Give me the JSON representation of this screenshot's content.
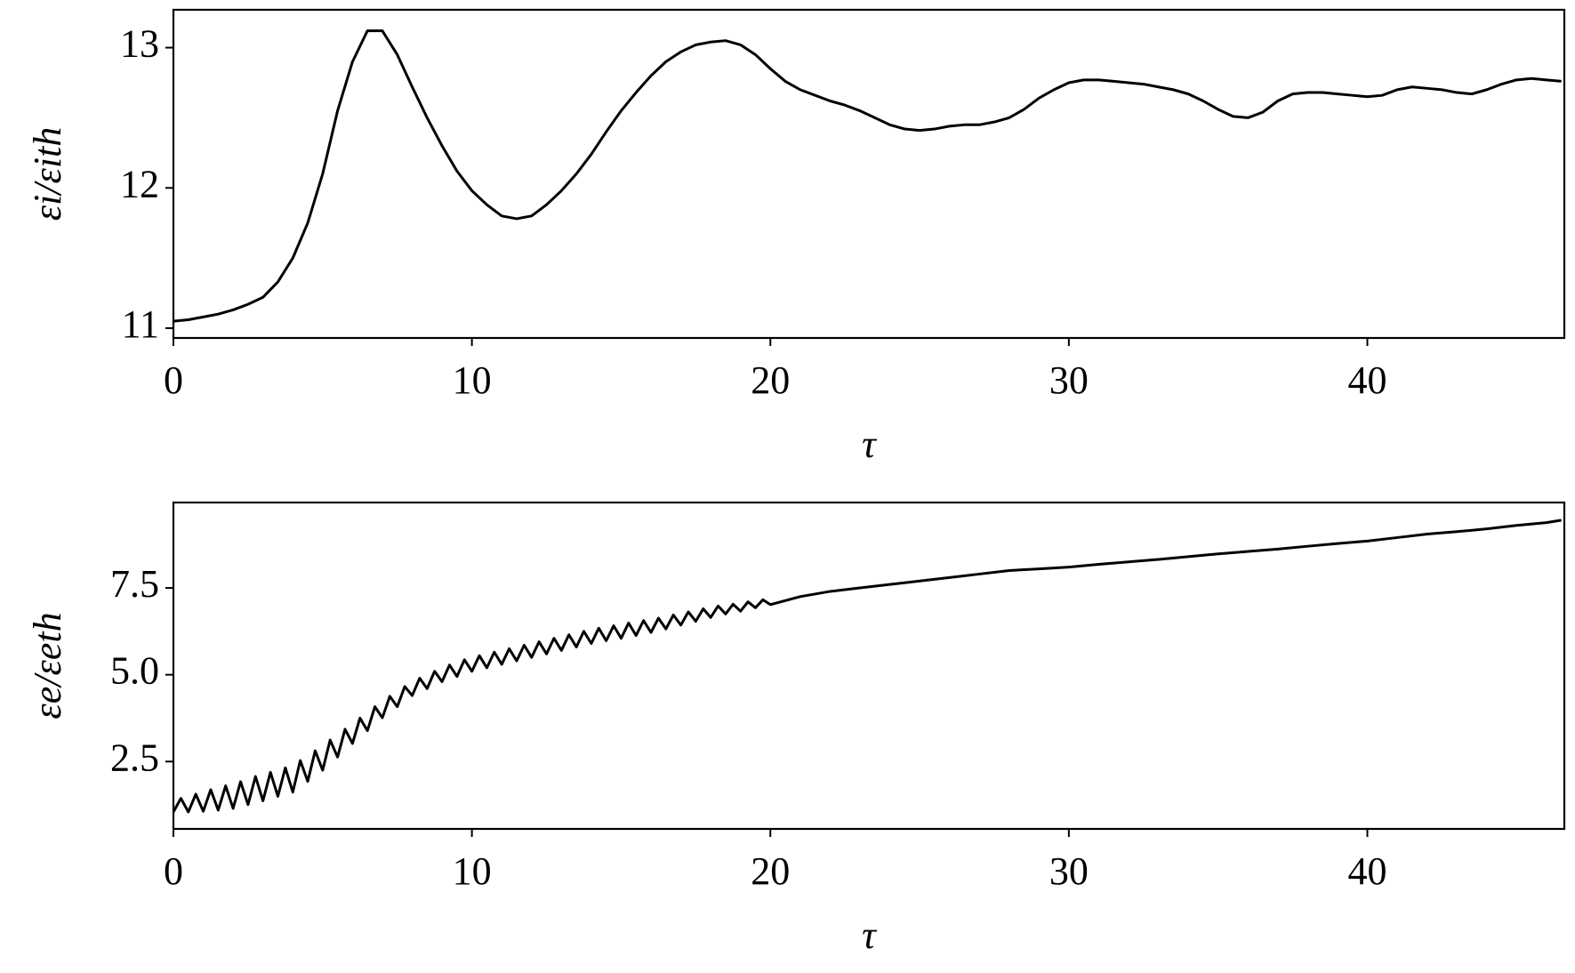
{
  "chart_data": [
    {
      "type": "line",
      "xlabel": "τ",
      "ylabel": "εi/εith",
      "x": [
        0,
        0.5,
        1,
        1.5,
        2,
        2.5,
        3,
        3.5,
        4,
        4.5,
        5,
        5.5,
        6,
        6.5,
        7,
        7.5,
        8,
        8.5,
        9,
        9.5,
        10,
        10.5,
        11,
        11.5,
        12,
        12.5,
        13,
        13.5,
        14,
        14.5,
        15,
        15.5,
        16,
        16.5,
        17,
        17.5,
        18,
        18.5,
        19,
        19.5,
        20,
        20.5,
        21,
        21.5,
        22,
        22.5,
        23,
        23.5,
        24,
        24.5,
        25,
        25.5,
        26,
        26.5,
        27,
        27.5,
        28,
        28.5,
        29,
        29.5,
        30,
        30.5,
        31,
        31.5,
        32,
        32.5,
        33,
        33.5,
        34,
        34.5,
        35,
        35.5,
        36,
        36.5,
        37,
        37.5,
        38,
        38.5,
        39,
        39.5,
        40,
        40.5,
        41,
        41.5,
        42,
        42.5,
        43,
        43.5,
        44,
        44.5,
        45,
        45.5,
        46,
        46.5
      ],
      "series": [
        {
          "color": "#000000",
          "values": [
            11.05,
            11.06,
            11.08,
            11.1,
            11.13,
            11.17,
            11.22,
            11.33,
            11.5,
            11.75,
            12.1,
            12.55,
            12.9,
            13.12,
            13.12,
            12.95,
            12.72,
            12.5,
            12.3,
            12.12,
            11.98,
            11.88,
            11.8,
            11.78,
            11.8,
            11.88,
            11.98,
            12.1,
            12.24,
            12.4,
            12.55,
            12.68,
            12.8,
            12.9,
            12.97,
            13.02,
            13.04,
            13.05,
            13.02,
            12.95,
            12.85,
            12.76,
            12.7,
            12.66,
            12.62,
            12.59,
            12.55,
            12.5,
            12.45,
            12.42,
            12.41,
            12.42,
            12.44,
            12.45,
            12.45,
            12.47,
            12.5,
            12.56,
            12.64,
            12.7,
            12.75,
            12.77,
            12.77,
            12.76,
            12.75,
            12.74,
            12.72,
            12.7,
            12.67,
            12.62,
            12.56,
            12.51,
            12.5,
            12.54,
            12.62,
            12.67,
            12.68,
            12.68,
            12.67,
            12.66,
            12.65,
            12.66,
            12.7,
            12.72,
            12.71,
            12.7,
            12.68,
            12.67,
            12.7,
            12.74,
            12.77,
            12.78,
            12.77,
            12.76
          ]
        }
      ],
      "xlim": [
        0,
        46.6
      ],
      "xticks": [
        0,
        10,
        20,
        30,
        40
      ],
      "ylim": [
        10.93,
        13.27
      ],
      "yticks": [
        11,
        12,
        13
      ]
    },
    {
      "type": "line",
      "xlabel": "τ",
      "ylabel": "εe/εeth",
      "x": [
        0,
        0.25,
        0.5,
        0.75,
        1,
        1.25,
        1.5,
        1.75,
        2,
        2.25,
        2.5,
        2.75,
        3,
        3.25,
        3.5,
        3.75,
        4,
        4.25,
        4.5,
        4.75,
        5,
        5.25,
        5.5,
        5.75,
        6,
        6.25,
        6.5,
        6.75,
        7,
        7.25,
        7.5,
        7.75,
        8,
        8.25,
        8.5,
        8.75,
        9,
        9.25,
        9.5,
        9.75,
        10,
        10.25,
        10.5,
        10.75,
        11,
        11.25,
        11.5,
        11.75,
        12,
        12.25,
        12.5,
        12.75,
        13,
        13.25,
        13.5,
        13.75,
        14,
        14.25,
        14.5,
        14.75,
        15,
        15.25,
        15.5,
        15.75,
        16,
        16.25,
        16.5,
        16.75,
        17,
        17.25,
        17.5,
        17.75,
        18,
        18.25,
        18.5,
        18.75,
        19,
        19.25,
        19.5,
        19.75,
        20,
        21,
        22,
        23,
        24,
        25,
        26,
        27,
        28,
        29,
        30,
        31,
        32,
        33,
        34,
        35,
        36,
        37,
        38,
        39,
        40,
        41,
        42,
        43,
        44,
        45,
        46,
        46.5
      ],
      "series": [
        {
          "color": "#000000",
          "values": [
            1.05,
            1.44,
            1.05,
            1.56,
            1.07,
            1.69,
            1.1,
            1.8,
            1.15,
            1.92,
            1.26,
            2.07,
            1.37,
            2.19,
            1.5,
            2.32,
            1.62,
            2.53,
            1.93,
            2.81,
            2.25,
            3.12,
            2.63,
            3.43,
            3.02,
            3.75,
            3.39,
            4.08,
            3.76,
            4.38,
            4.08,
            4.66,
            4.4,
            4.9,
            4.6,
            5.1,
            4.8,
            5.28,
            4.95,
            5.43,
            5.1,
            5.55,
            5.2,
            5.65,
            5.3,
            5.75,
            5.4,
            5.85,
            5.5,
            5.95,
            5.6,
            6.05,
            5.7,
            6.15,
            5.8,
            6.25,
            5.9,
            6.34,
            5.98,
            6.41,
            6.05,
            6.49,
            6.13,
            6.56,
            6.22,
            6.63,
            6.32,
            6.72,
            6.43,
            6.81,
            6.54,
            6.9,
            6.65,
            6.98,
            6.75,
            7.03,
            6.83,
            7.1,
            6.93,
            7.16,
            7.02,
            7.25,
            7.4,
            7.5,
            7.6,
            7.7,
            7.8,
            7.9,
            8.0,
            8.05,
            8.1,
            8.18,
            8.25,
            8.32,
            8.4,
            8.48,
            8.55,
            8.62,
            8.7,
            8.78,
            8.85,
            8.95,
            9.05,
            9.12,
            9.2,
            9.3,
            9.38,
            9.45
          ]
        }
      ],
      "xlim": [
        0,
        46.6
      ],
      "xticks": [
        0,
        10,
        20,
        30,
        40
      ],
      "ylim": [
        0.56,
        9.96
      ],
      "yticks": [
        2.5,
        {
          "value": 5,
          "label": "5.0"
        },
        7.5
      ]
    }
  ]
}
